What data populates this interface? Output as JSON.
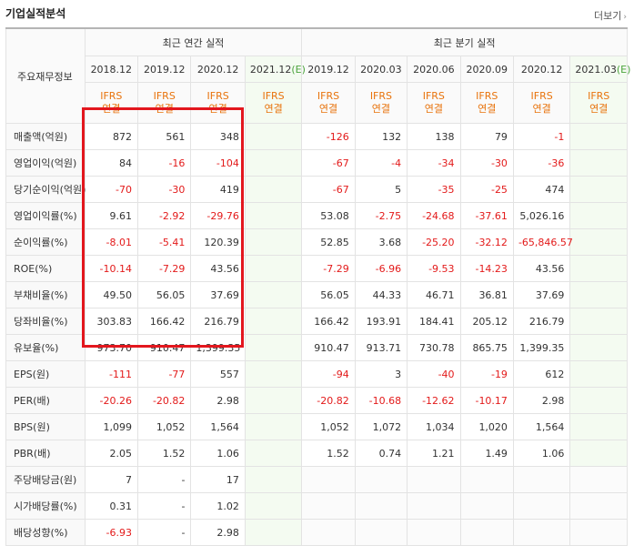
{
  "title": "기업실적분석",
  "more_label": "더보기",
  "header": {
    "row_label": "주요재무정보",
    "annual_group": "최근 연간 실적",
    "quarterly_group": "최근 분기 실적",
    "annual_periods": [
      "2018.12",
      "2019.12",
      "2020.12",
      "2021.12"
    ],
    "quarter_periods": [
      "2019.12",
      "2020.03",
      "2020.06",
      "2020.09",
      "2020.12",
      "2021.03"
    ],
    "estimate_marker": "(E)",
    "ifrs_line1": "IFRS",
    "ifrs_line2": "연결"
  },
  "rows": [
    {
      "label": "매출액(억원)",
      "annual": [
        "872",
        "561",
        "348",
        ""
      ],
      "quarter": [
        "-126",
        "132",
        "138",
        "79",
        "-1",
        ""
      ]
    },
    {
      "label": "영업이익(억원)",
      "annual": [
        "84",
        "-16",
        "-104",
        ""
      ],
      "quarter": [
        "-67",
        "-4",
        "-34",
        "-30",
        "-36",
        ""
      ]
    },
    {
      "label": "당기순이익(억원)",
      "annual": [
        "-70",
        "-30",
        "419",
        ""
      ],
      "quarter": [
        "-67",
        "5",
        "-35",
        "-25",
        "474",
        ""
      ]
    },
    {
      "label": "영업이익률(%)",
      "annual": [
        "9.61",
        "-2.92",
        "-29.76",
        ""
      ],
      "quarter": [
        "53.08",
        "-2.75",
        "-24.68",
        "-37.61",
        "5,026.16",
        ""
      ]
    },
    {
      "label": "순이익률(%)",
      "annual": [
        "-8.01",
        "-5.41",
        "120.39",
        ""
      ],
      "quarter": [
        "52.85",
        "3.68",
        "-25.20",
        "-32.12",
        "-65,846.57",
        ""
      ]
    },
    {
      "label": "ROE(%)",
      "annual": [
        "-10.14",
        "-7.29",
        "43.56",
        ""
      ],
      "quarter": [
        "-7.29",
        "-6.96",
        "-9.53",
        "-14.23",
        "43.56",
        ""
      ]
    },
    {
      "label": "부채비율(%)",
      "annual": [
        "49.50",
        "56.05",
        "37.69",
        ""
      ],
      "quarter": [
        "56.05",
        "44.33",
        "46.71",
        "36.81",
        "37.69",
        ""
      ]
    },
    {
      "label": "당좌비율(%)",
      "annual": [
        "303.83",
        "166.42",
        "216.79",
        ""
      ],
      "quarter": [
        "166.42",
        "193.91",
        "184.41",
        "205.12",
        "216.79",
        ""
      ]
    },
    {
      "label": "유보율(%)",
      "annual": [
        "973.70",
        "910.47",
        "1,399.35",
        ""
      ],
      "quarter": [
        "910.47",
        "913.71",
        "730.78",
        "865.75",
        "1,399.35",
        ""
      ]
    },
    {
      "label": "EPS(원)",
      "annual": [
        "-111",
        "-77",
        "557",
        ""
      ],
      "quarter": [
        "-94",
        "3",
        "-40",
        "-19",
        "612",
        ""
      ]
    },
    {
      "label": "PER(배)",
      "annual": [
        "-20.26",
        "-20.82",
        "2.98",
        ""
      ],
      "quarter": [
        "-20.82",
        "-10.68",
        "-12.62",
        "-10.17",
        "2.98",
        ""
      ]
    },
    {
      "label": "BPS(원)",
      "annual": [
        "1,099",
        "1,052",
        "1,564",
        ""
      ],
      "quarter": [
        "1,052",
        "1,072",
        "1,034",
        "1,020",
        "1,564",
        ""
      ]
    },
    {
      "label": "PBR(배)",
      "annual": [
        "2.05",
        "1.52",
        "1.06",
        ""
      ],
      "quarter": [
        "1.52",
        "0.74",
        "1.21",
        "1.49",
        "1.06",
        ""
      ]
    },
    {
      "label": "주당배당금(원)",
      "annual": [
        "7",
        "-",
        "17",
        ""
      ],
      "quarter": [
        "",
        "",
        "",
        "",
        "",
        ""
      ]
    },
    {
      "label": "시가배당률(%)",
      "annual": [
        "0.31",
        "-",
        "1.02",
        ""
      ],
      "quarter": [
        "",
        "",
        "",
        "",
        "",
        ""
      ]
    },
    {
      "label": "배당성향(%)",
      "annual": [
        "-6.93",
        "-",
        "2.98",
        ""
      ],
      "quarter": [
        "",
        "",
        "",
        "",
        "",
        ""
      ]
    }
  ],
  "colors": {
    "negative": "#e31a1a",
    "ifrs": "#e8730c",
    "estimate": "#4ba33c",
    "highlight_box": "#e3171e"
  }
}
